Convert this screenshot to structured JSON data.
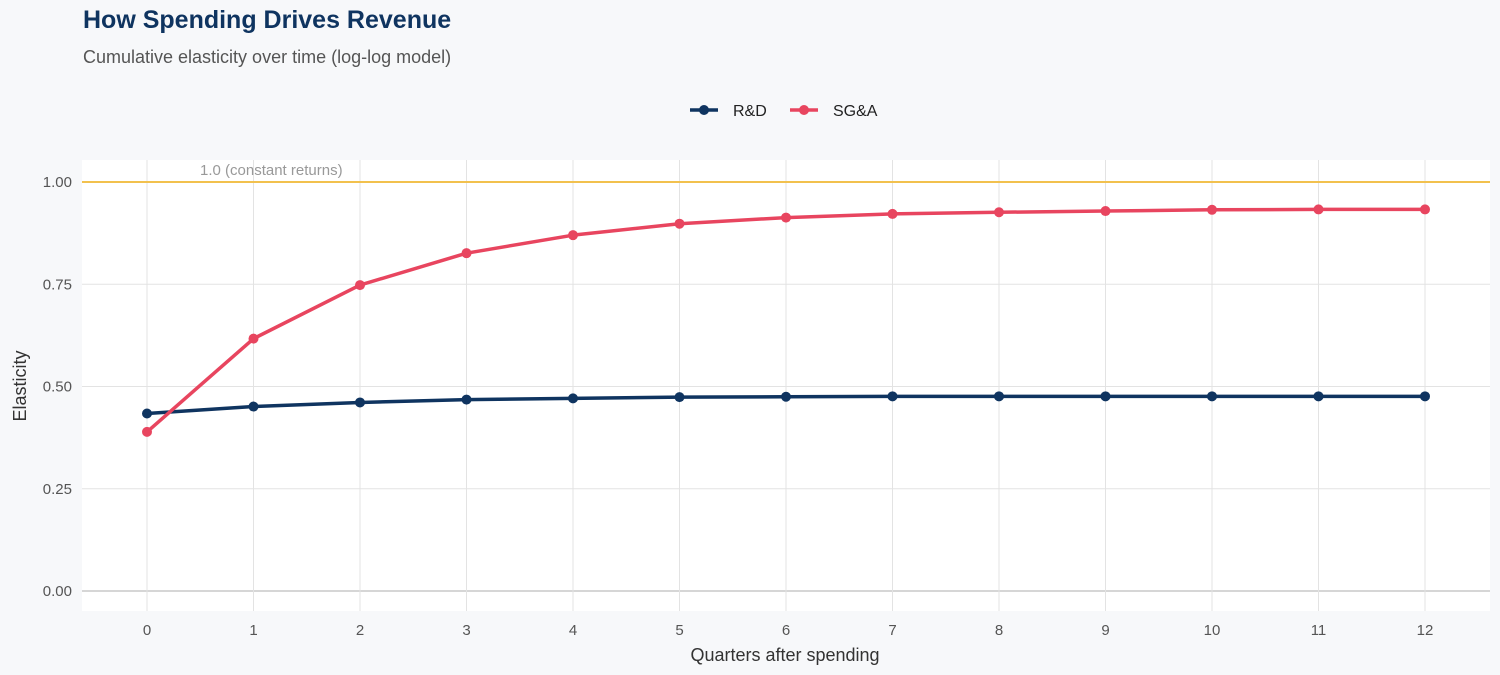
{
  "chart_data": {
    "type": "line",
    "title": "How Spending Drives Revenue",
    "subtitle": "Cumulative elasticity over time (log-log model)",
    "xlabel": "Quarters after spending",
    "ylabel": "Elasticity",
    "x": [
      0,
      1,
      2,
      3,
      4,
      5,
      6,
      7,
      8,
      9,
      10,
      11,
      12
    ],
    "xticks": [
      "0",
      "1",
      "2",
      "3",
      "4",
      "5",
      "6",
      "7",
      "8",
      "9",
      "10",
      "11",
      "12"
    ],
    "yticks": [
      "0.00",
      "0.25",
      "0.50",
      "0.75",
      "1.00"
    ],
    "ylim": [
      -0.05,
      1.05
    ],
    "xlim": [
      -0.6,
      12.6
    ],
    "grid": true,
    "legend_position": "top",
    "series": [
      {
        "name": "R&D",
        "color": "#0f3460",
        "values": [
          0.434,
          0.451,
          0.461,
          0.468,
          0.471,
          0.474,
          0.475,
          0.476,
          0.476,
          0.476,
          0.476,
          0.476,
          0.476
        ]
      },
      {
        "name": "SG&A",
        "color": "#e8455f",
        "values": [
          0.389,
          0.617,
          0.748,
          0.826,
          0.87,
          0.898,
          0.913,
          0.922,
          0.926,
          0.929,
          0.932,
          0.933,
          0.933
        ]
      }
    ],
    "reference_line": {
      "y": 1.0,
      "label": "1.0 (constant returns)",
      "color": "#f2c14e"
    }
  }
}
